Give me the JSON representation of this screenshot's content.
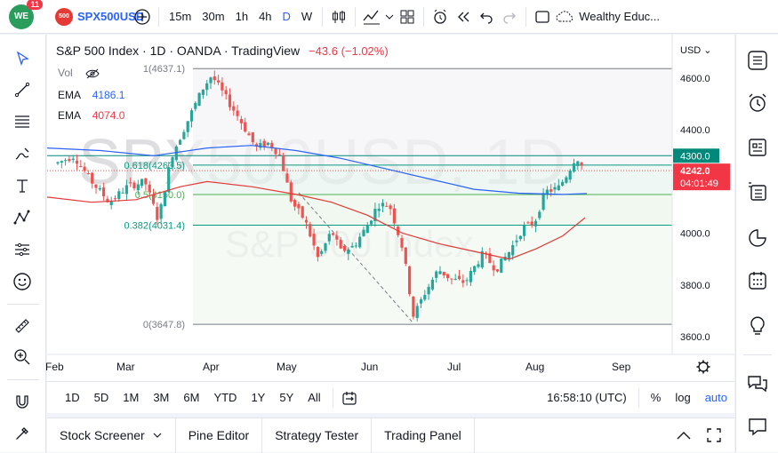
{
  "topbar": {
    "notif_count": "11",
    "symbol_badge": "500",
    "symbol": "SPX500USD",
    "intervals": [
      "15m",
      "30m",
      "1h",
      "4h",
      "D",
      "W"
    ],
    "active_interval": "D",
    "layout_name": "Wealthy Educ..."
  },
  "legend": {
    "title": "S&P 500 Index · 1D · OANDA · TradingView",
    "change": "−43.6 (−1.02%)",
    "vol": "Vol",
    "ema1_label": "EMA",
    "ema1_value": "4186.1",
    "ema2_label": "EMA",
    "ema2_value": "4074.0"
  },
  "watermark": {
    "big": "SPX500USD, 1D",
    "small": "S&P 500 Index"
  },
  "fib": {
    "levels": [
      {
        "label": "1(4637.1)",
        "price": 4637.1
      },
      {
        "label": "0.618(4263.5)",
        "price": 4263.5
      },
      {
        "label": "0.5(4150.0)",
        "price": 4150.0
      },
      {
        "label": "0.382(4031.4)",
        "price": 4031.4
      },
      {
        "label": "0(3647.8)",
        "price": 3647.8
      }
    ]
  },
  "price_axis": {
    "currency": "USD",
    "ticks": [
      "4600.0",
      "4400.0",
      "4300.0",
      "4000.0",
      "3800.0",
      "3600.0"
    ],
    "last_price": "4242.0",
    "countdown": "04:01:49",
    "highlight": "4300.0"
  },
  "time_axis": {
    "labels": [
      "Feb",
      "Mar",
      "Apr",
      "May",
      "Jun",
      "Jul",
      "Aug",
      "Sep"
    ]
  },
  "rangebar": {
    "ranges": [
      "1D",
      "5D",
      "1M",
      "3M",
      "6M",
      "YTD",
      "1Y",
      "5Y",
      "All"
    ],
    "clock": "16:58:10 (UTC)",
    "pct": "%",
    "log": "log",
    "auto": "auto"
  },
  "panelbar": {
    "tabs": [
      "Stock Screener",
      "Pine Editor",
      "Strategy Tester",
      "Trading Panel"
    ]
  },
  "colors": {
    "up": "#26a69a",
    "down": "#ef5350",
    "ema_fast": "#2962ff",
    "ema_slow": "#e53935",
    "accent": "#2962ff"
  }
}
